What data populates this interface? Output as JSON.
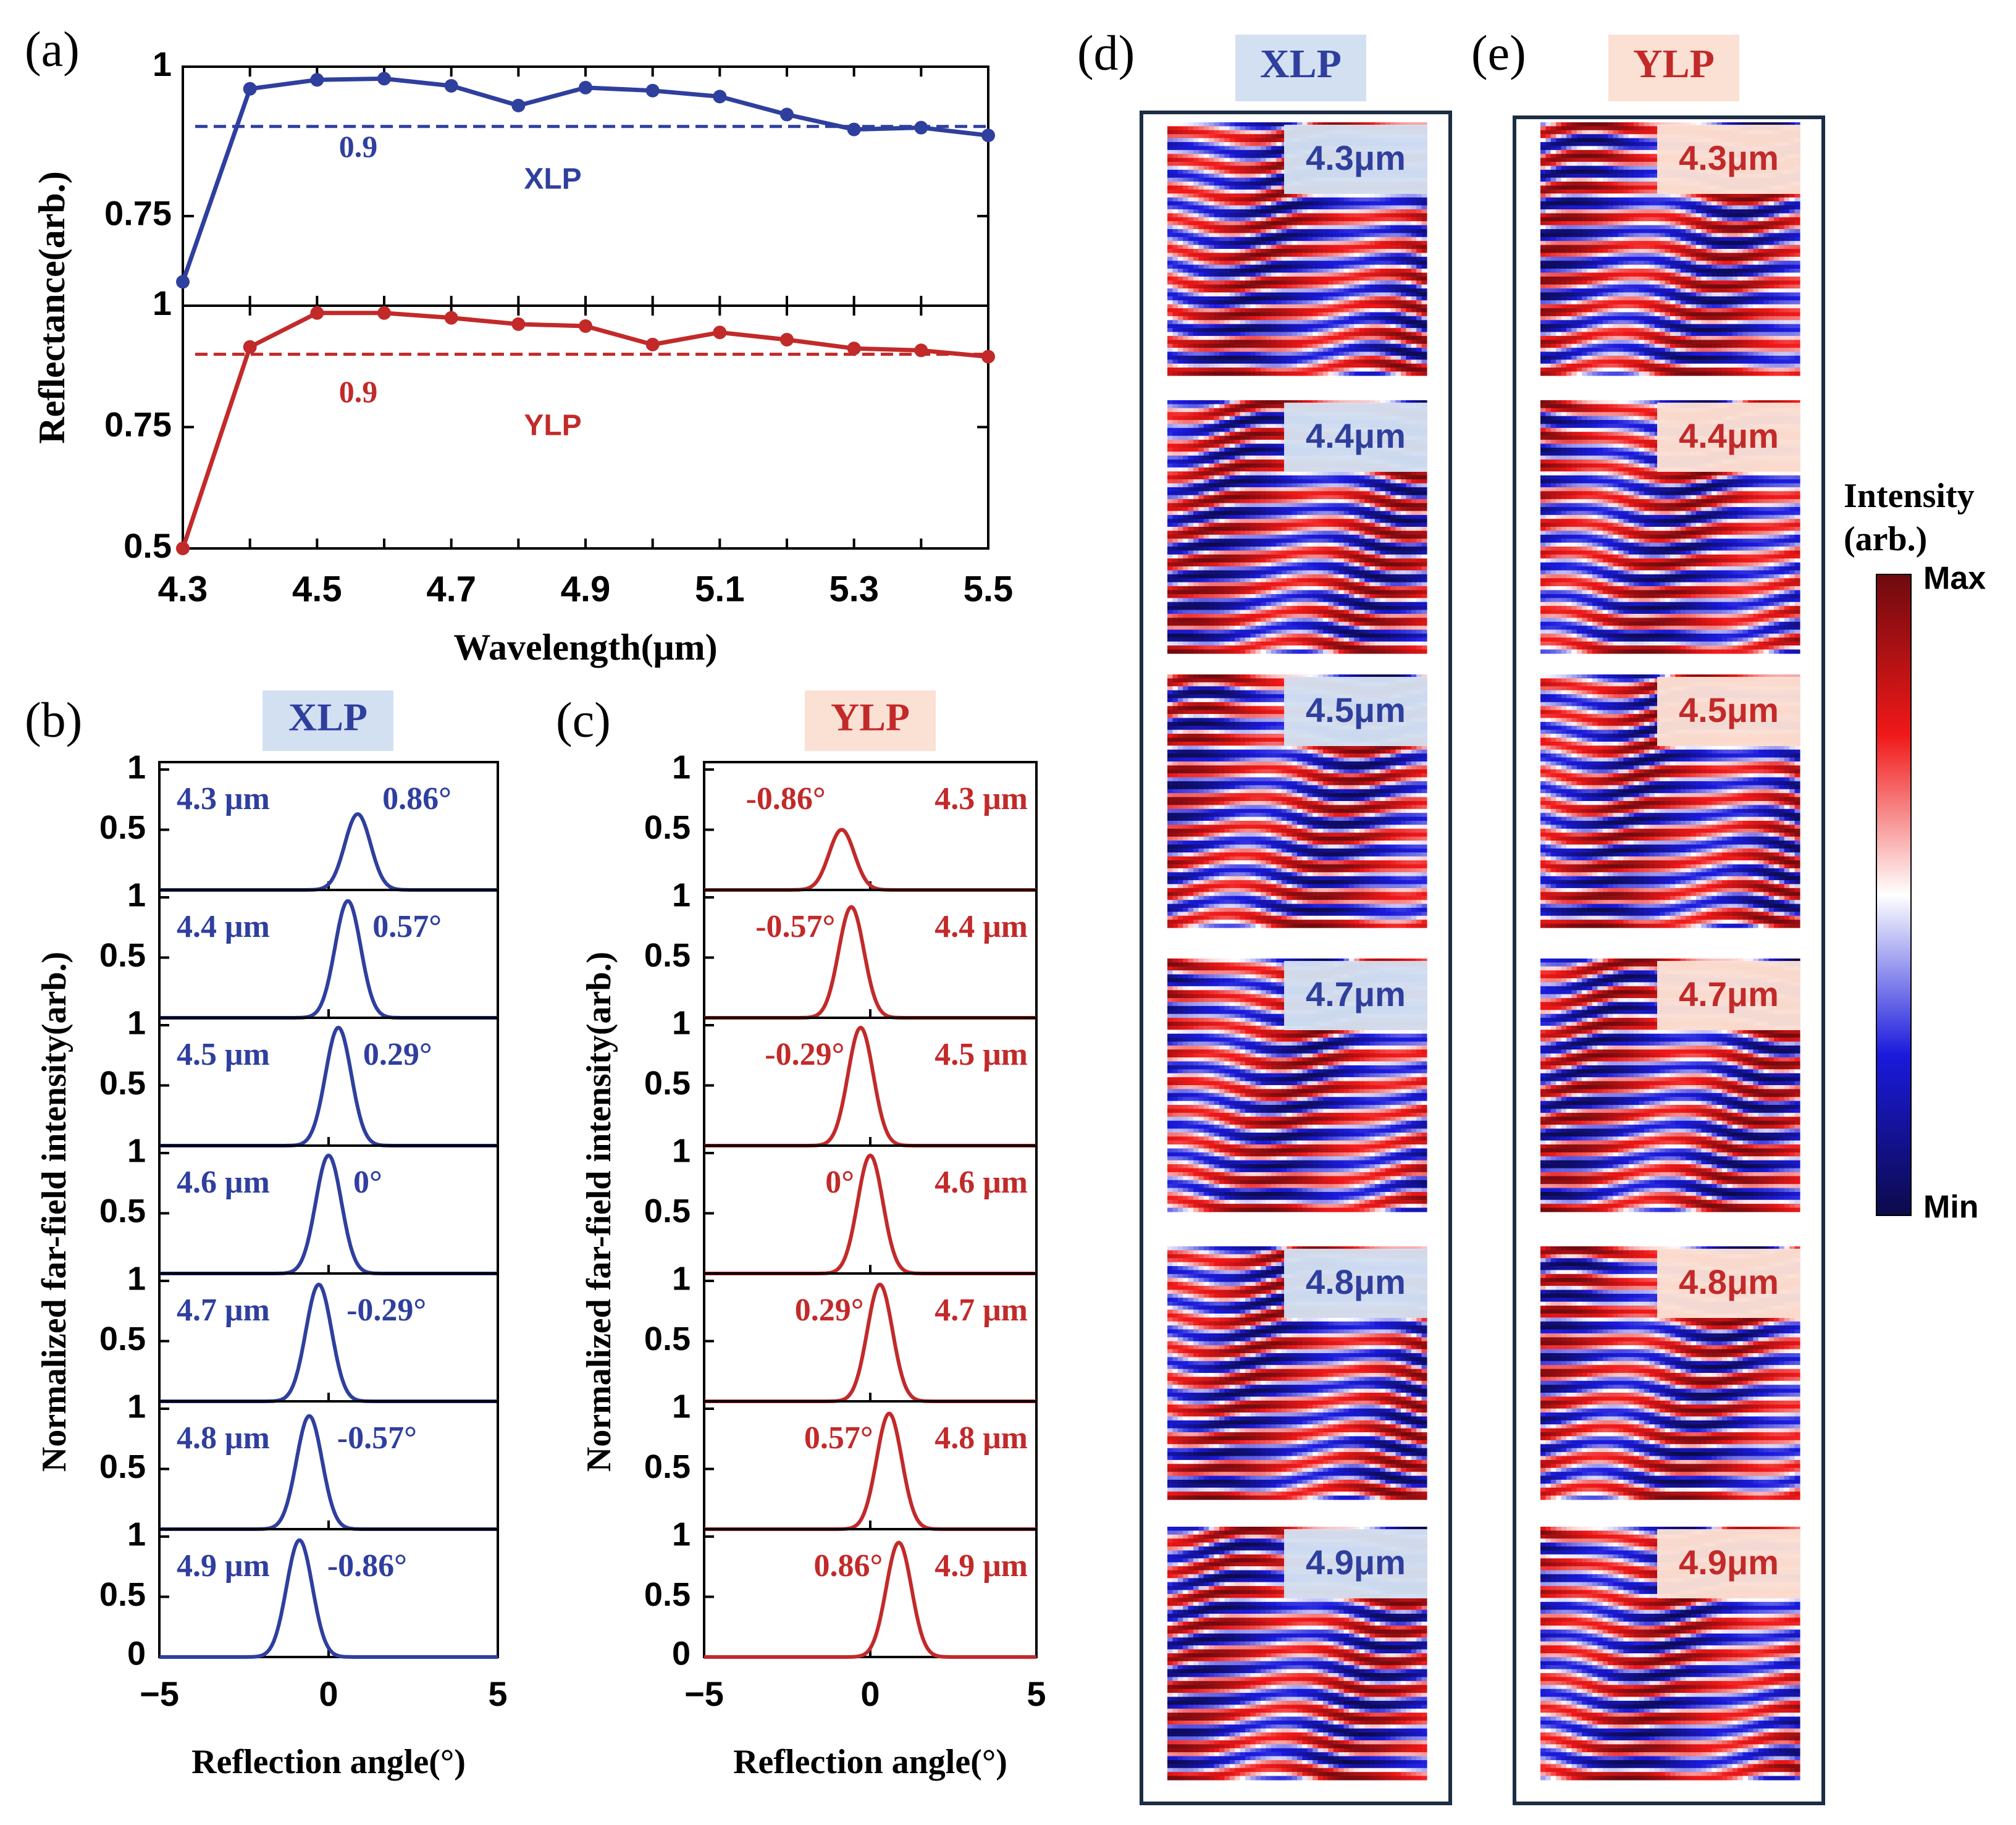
{
  "colors": {
    "blue": "#2f3f9e",
    "red": "#c22a2a",
    "blue_box": "#d3e0f1",
    "red_box": "#fbe0d4",
    "axis": "#000000",
    "cmap": [
      "#0d0a4a",
      "#1a1adc",
      "#ffffff",
      "#f01818",
      "#6e0a0f"
    ]
  },
  "chart_data": [
    {
      "id": "a",
      "panel_label": "(a)",
      "type": "line",
      "xlabel": "Wavelength(μm)",
      "ylabel": "Reflectance(arb.)",
      "x": [
        4.3,
        4.4,
        4.5,
        4.6,
        4.7,
        4.8,
        4.9,
        5.0,
        5.1,
        5.2,
        5.3,
        5.4,
        5.5
      ],
      "xticks": [
        "4.3",
        "4.5",
        "4.7",
        "4.9",
        "5.1",
        "5.3",
        "5.5"
      ],
      "xlim": [
        4.3,
        5.5
      ],
      "series": [
        {
          "name": "XLP",
          "color": "#2f3f9e",
          "values": [
            0.64,
            0.963,
            0.978,
            0.98,
            0.968,
            0.935,
            0.965,
            0.96,
            0.95,
            0.92,
            0.895,
            0.898,
            0.885
          ],
          "ylim": [
            0.6,
            1.0
          ],
          "yticks": [
            "1",
            "0.75"
          ],
          "reference": 0.9,
          "reference_label": "0.9"
        },
        {
          "name": "YLP",
          "color": "#c22a2a",
          "values": [
            0.5,
            0.915,
            0.985,
            0.985,
            0.975,
            0.962,
            0.958,
            0.92,
            0.945,
            0.93,
            0.912,
            0.908,
            0.895
          ],
          "ylim": [
            0.5,
            1.0
          ],
          "yticks": [
            "1",
            "0.75",
            "0.5"
          ],
          "reference": 0.9,
          "reference_label": "0.9"
        }
      ]
    },
    {
      "id": "b",
      "panel_label": "(b)",
      "title": "XLP",
      "type": "line",
      "xlabel": "Reflection angle(°)",
      "ylabel": "Normalized far-field intensity(arb.)",
      "xlim": [
        -5,
        5
      ],
      "xticks": [
        "−5",
        "0",
        "5"
      ],
      "ytick_labels": [
        "1",
        "0.5",
        "0"
      ],
      "color": "#2f3f9e",
      "peak_width_sigma": 0.38,
      "panels": [
        {
          "wavelength_label": "4.3 μm",
          "angle_label": "0.86°",
          "peak_angle": 0.86,
          "peak_value": 0.63
        },
        {
          "wavelength_label": "4.4 μm",
          "angle_label": "0.57°",
          "peak_angle": 0.57,
          "peak_value": 0.97
        },
        {
          "wavelength_label": "4.5 μm",
          "angle_label": "0.29°",
          "peak_angle": 0.29,
          "peak_value": 0.98
        },
        {
          "wavelength_label": "4.6 μm",
          "angle_label": "0°",
          "peak_angle": 0.0,
          "peak_value": 0.98
        },
        {
          "wavelength_label": "4.7 μm",
          "angle_label": "-0.29°",
          "peak_angle": -0.29,
          "peak_value": 0.97
        },
        {
          "wavelength_label": "4.8 μm",
          "angle_label": "-0.57°",
          "peak_angle": -0.57,
          "peak_value": 0.94
        },
        {
          "wavelength_label": "4.9 μm",
          "angle_label": "-0.86°",
          "peak_angle": -0.86,
          "peak_value": 0.97
        }
      ]
    },
    {
      "id": "c",
      "panel_label": "(c)",
      "title": "YLP",
      "type": "line",
      "xlabel": "Reflection angle(°)",
      "ylabel": "Normalized far-field intensity(arb.)",
      "xlim": [
        -5,
        5
      ],
      "xticks": [
        "−5",
        "0",
        "5"
      ],
      "ytick_labels": [
        "1",
        "0.5",
        "0"
      ],
      "color": "#c22a2a",
      "peak_width_sigma": 0.38,
      "panels": [
        {
          "wavelength_label": "4.3 μm",
          "angle_label": "-0.86°",
          "peak_angle": -0.86,
          "peak_value": 0.5
        },
        {
          "wavelength_label": "4.4 μm",
          "angle_label": "-0.57°",
          "peak_angle": -0.57,
          "peak_value": 0.92
        },
        {
          "wavelength_label": "4.5 μm",
          "angle_label": "-0.29°",
          "peak_angle": -0.29,
          "peak_value": 0.98
        },
        {
          "wavelength_label": "4.6 μm",
          "angle_label": "0°",
          "peak_angle": 0.0,
          "peak_value": 0.98
        },
        {
          "wavelength_label": "4.7 μm",
          "angle_label": "0.29°",
          "peak_angle": 0.29,
          "peak_value": 0.97
        },
        {
          "wavelength_label": "4.8 μm",
          "angle_label": "0.57°",
          "peak_angle": 0.57,
          "peak_value": 0.96
        },
        {
          "wavelength_label": "4.9 μm",
          "angle_label": "0.86°",
          "peak_angle": 0.86,
          "peak_value": 0.95
        }
      ]
    },
    {
      "id": "d",
      "panel_label": "(d)",
      "title": "XLP",
      "type": "heatmap",
      "color": "#2f3f9e",
      "maps": [
        "4.3μm",
        "4.4μm",
        "4.5μm",
        "4.7μm",
        "4.8μm",
        "4.9μm"
      ]
    },
    {
      "id": "e",
      "panel_label": "(e)",
      "title": "YLP",
      "type": "heatmap",
      "color": "#c22a2a",
      "maps": [
        "4.3μm",
        "4.4μm",
        "4.5μm",
        "4.7μm",
        "4.8μm",
        "4.9μm"
      ]
    }
  ],
  "colorbar": {
    "title_line1": "Intensity",
    "title_line2": "(arb.)",
    "max_label": "Max",
    "min_label": "Min"
  }
}
